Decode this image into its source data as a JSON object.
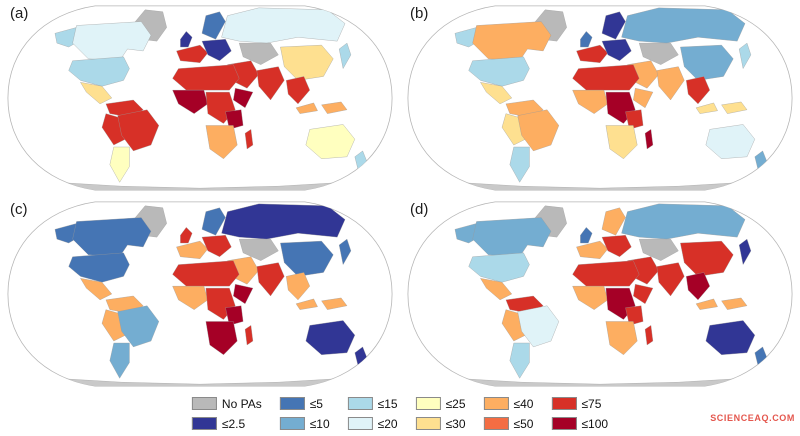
{
  "figure": {
    "panels": [
      {
        "label": "(a)",
        "colors": {
          "greenland": "#b9b9b9",
          "alaska": "#abd9e9",
          "canada": "#e0f3f8",
          "usa": "#abd9e9",
          "mexico": "#fee090",
          "sa_north": "#d73027",
          "peru": "#d73027",
          "brazil": "#d73027",
          "argentina": "#ffffbf",
          "russia": "#e0f3f8",
          "scandinavia": "#4575b4",
          "uk": "#313695",
          "europe_west": "#d73027",
          "europe_east": "#313695",
          "centralasia": "#b9b9b9",
          "china": "#fee090",
          "japan": "#abd9e9",
          "middleeast": "#d73027",
          "india": "#d73027",
          "seasia": "#d73027",
          "indonesia": "#fdae61",
          "northafrica": "#d73027",
          "westafrica": "#a50026",
          "centralafrica": "#d73027",
          "hornafrica": "#a50026",
          "eastafrica": "#a50026",
          "southernafrica": "#fdae61",
          "madagascar": "#d73027",
          "australia": "#ffffbf",
          "newzealand": "#abd9e9",
          "antarctica": "#c9c9c9"
        }
      },
      {
        "label": "(b)",
        "colors": {
          "greenland": "#b9b9b9",
          "alaska": "#abd9e9",
          "canada": "#fdae61",
          "usa": "#abd9e9",
          "mexico": "#fee090",
          "sa_north": "#fdae61",
          "peru": "#fee090",
          "brazil": "#fdae61",
          "argentina": "#abd9e9",
          "russia": "#74add1",
          "scandinavia": "#313695",
          "uk": "#4575b4",
          "europe_west": "#d73027",
          "europe_east": "#313695",
          "centralasia": "#b9b9b9",
          "china": "#74add1",
          "japan": "#abd9e9",
          "middleeast": "#fdae61",
          "india": "#fdae61",
          "seasia": "#d73027",
          "indonesia": "#fee090",
          "northafrica": "#d73027",
          "westafrica": "#fdae61",
          "centralafrica": "#a50026",
          "hornafrica": "#fdae61",
          "eastafrica": "#d73027",
          "southernafrica": "#fee090",
          "madagascar": "#a50026",
          "australia": "#e0f3f8",
          "newzealand": "#74add1",
          "antarctica": "#c9c9c9"
        }
      },
      {
        "label": "(c)",
        "colors": {
          "greenland": "#b9b9b9",
          "alaska": "#4575b4",
          "canada": "#4575b4",
          "usa": "#4575b4",
          "mexico": "#fdae61",
          "sa_north": "#fdae61",
          "peru": "#fdae61",
          "brazil": "#74add1",
          "argentina": "#74add1",
          "russia": "#313695",
          "scandinavia": "#4575b4",
          "uk": "#d73027",
          "europe_west": "#fdae61",
          "europe_east": "#d73027",
          "centralasia": "#b9b9b9",
          "china": "#4575b4",
          "japan": "#4575b4",
          "middleeast": "#fdae61",
          "india": "#d73027",
          "seasia": "#fdae61",
          "indonesia": "#fdae61",
          "northafrica": "#d73027",
          "westafrica": "#fdae61",
          "centralafrica": "#d73027",
          "hornafrica": "#a50026",
          "eastafrica": "#a50026",
          "southernafrica": "#a50026",
          "madagascar": "#d73027",
          "australia": "#313695",
          "newzealand": "#313695",
          "antarctica": "#c9c9c9"
        }
      },
      {
        "label": "(d)",
        "colors": {
          "greenland": "#b9b9b9",
          "alaska": "#74add1",
          "canada": "#74add1",
          "usa": "#abd9e9",
          "mexico": "#fdae61",
          "sa_north": "#d73027",
          "peru": "#fdae61",
          "brazil": "#e0f3f8",
          "argentina": "#abd9e9",
          "russia": "#74add1",
          "scandinavia": "#fdae61",
          "uk": "#4575b4",
          "europe_west": "#fdae61",
          "europe_east": "#d73027",
          "centralasia": "#b9b9b9",
          "china": "#d73027",
          "japan": "#313695",
          "middleeast": "#d73027",
          "india": "#d73027",
          "seasia": "#a50026",
          "indonesia": "#fdae61",
          "northafrica": "#d73027",
          "westafrica": "#fdae61",
          "centralafrica": "#a50026",
          "hornafrica": "#d73027",
          "eastafrica": "#d73027",
          "southernafrica": "#fdae61",
          "madagascar": "#d73027",
          "australia": "#313695",
          "newzealand": "#4575b4",
          "antarctica": "#c9c9c9"
        }
      }
    ]
  },
  "legend": {
    "items": [
      {
        "label": "No PAs",
        "color": "#b9b9b9"
      },
      {
        "label": "≤2.5",
        "color": "#313695"
      },
      {
        "label": "≤5",
        "color": "#4575b4"
      },
      {
        "label": "≤10",
        "color": "#74add1"
      },
      {
        "label": "≤15",
        "color": "#abd9e9"
      },
      {
        "label": "≤20",
        "color": "#e0f3f8"
      },
      {
        "label": "≤25",
        "color": "#ffffbf"
      },
      {
        "label": "≤30",
        "color": "#fee090"
      },
      {
        "label": "≤40",
        "color": "#fdae61"
      },
      {
        "label": "≤50",
        "color": "#f46d43"
      },
      {
        "label": "≤75",
        "color": "#d73027"
      },
      {
        "label": "≤100",
        "color": "#a50026"
      }
    ]
  },
  "watermark": {
    "text": "SCIENCEAQ.COM",
    "color": "#e4574e"
  }
}
